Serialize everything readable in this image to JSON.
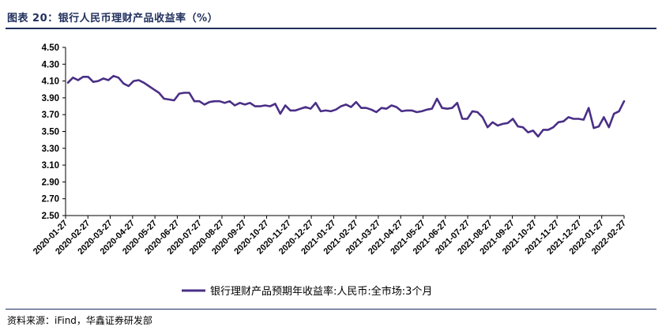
{
  "header": {
    "figure_title": "图表 20：银行人民币理财产品收益率（%）"
  },
  "footer": {
    "source": "资料来源：iFind，华鑫证券研发部"
  },
  "colors": {
    "line": "#4a2f86",
    "rule": "#1f2f5c",
    "axis": "#000000"
  },
  "chart_data": {
    "type": "line",
    "title": "",
    "xlabel": "",
    "ylabel": "",
    "ylim": [
      2.5,
      4.5
    ],
    "y_ticks": [
      "4.50",
      "4.30",
      "4.10",
      "3.90",
      "3.70",
      "3.50",
      "3.30",
      "3.10",
      "2.90",
      "2.70",
      "2.50"
    ],
    "y_tick_values": [
      4.5,
      4.3,
      4.1,
      3.9,
      3.7,
      3.5,
      3.3,
      3.1,
      2.9,
      2.7,
      2.5
    ],
    "x_tick_labels": [
      "2020-01-27",
      "2020-02-27",
      "2020-03-27",
      "2020-04-27",
      "2020-05-27",
      "2020-06-27",
      "2020-07-27",
      "2020-08-27",
      "2020-09-27",
      "2020-10-27",
      "2020-11-27",
      "2020-12-27",
      "2021-01-27",
      "2021-02-27",
      "2021-03-27",
      "2021-04-27",
      "2021-05-27",
      "2021-06-27",
      "2021-07-27",
      "2021-08-27",
      "2021-09-27",
      "2021-10-27",
      "2021-11-27",
      "2021-12-27",
      "2022-01-27",
      "2022-02-27"
    ],
    "grid": false,
    "legend_position": "bottom-center",
    "series": [
      {
        "name": "银行理财产品预期年收益率:人民币:全市场:3个月",
        "values": [
          4.08,
          4.14,
          4.11,
          4.15,
          4.15,
          4.09,
          4.1,
          4.13,
          4.11,
          4.16,
          4.14,
          4.07,
          4.04,
          4.1,
          4.11,
          4.08,
          4.04,
          4.0,
          3.96,
          3.89,
          3.88,
          3.87,
          3.95,
          3.96,
          3.96,
          3.86,
          3.86,
          3.82,
          3.85,
          3.86,
          3.86,
          3.84,
          3.86,
          3.81,
          3.84,
          3.82,
          3.84,
          3.8,
          3.8,
          3.81,
          3.8,
          3.83,
          3.71,
          3.81,
          3.75,
          3.75,
          3.77,
          3.79,
          3.77,
          3.84,
          3.74,
          3.75,
          3.74,
          3.76,
          3.8,
          3.82,
          3.79,
          3.85,
          3.78,
          3.78,
          3.76,
          3.73,
          3.78,
          3.77,
          3.81,
          3.79,
          3.74,
          3.75,
          3.75,
          3.73,
          3.74,
          3.76,
          3.77,
          3.89,
          3.78,
          3.77,
          3.78,
          3.84,
          3.65,
          3.65,
          3.74,
          3.73,
          3.67,
          3.55,
          3.61,
          3.57,
          3.59,
          3.6,
          3.65,
          3.56,
          3.55,
          3.49,
          3.51,
          3.44,
          3.52,
          3.52,
          3.55,
          3.61,
          3.62,
          3.67,
          3.65,
          3.65,
          3.64,
          3.78,
          3.54,
          3.56,
          3.67,
          3.55,
          3.71,
          3.74,
          3.86
        ]
      }
    ]
  }
}
